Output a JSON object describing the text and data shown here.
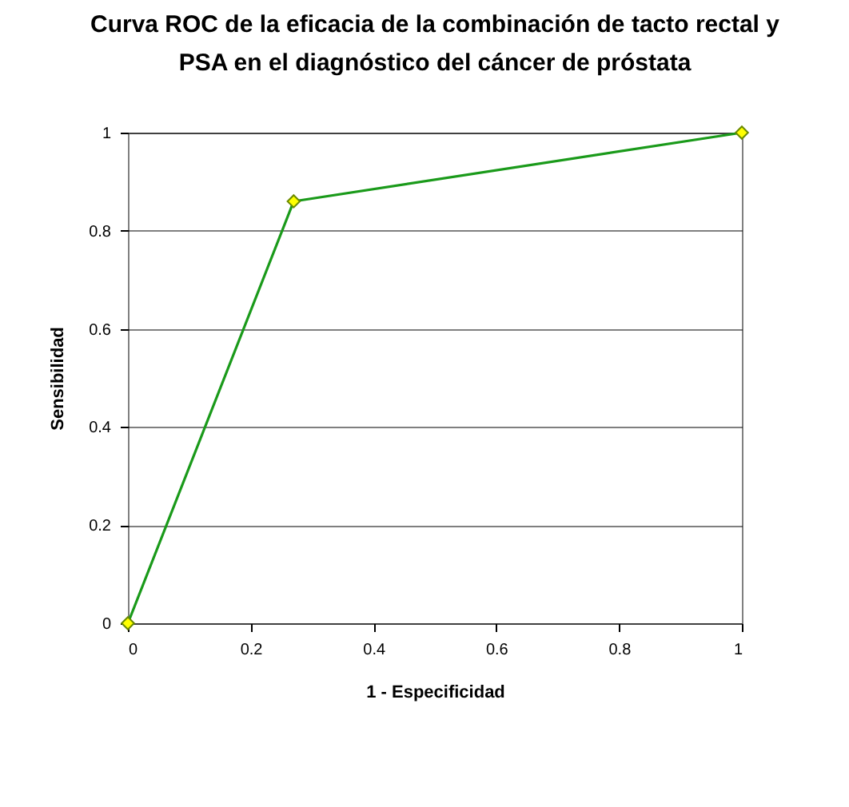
{
  "chart_data": {
    "type": "line",
    "title": "Curva ROC de la eficacia de la combinación de tacto rectal y PSA en el diagnóstico del cáncer de próstata",
    "xlabel": "1 - Especificidad",
    "ylabel": "Sensibilidad",
    "x": [
      0,
      0.27,
      1
    ],
    "series": [
      {
        "color": "#1a9a1a",
        "values": [
          0,
          0.86,
          1
        ]
      }
    ],
    "xlim": [
      0,
      1
    ],
    "xticks": [
      0,
      0.2,
      0.4,
      0.6,
      0.8,
      1
    ],
    "ylim": [
      0,
      1
    ],
    "yticks": [
      0,
      0.2,
      0.4,
      0.6,
      0.8,
      1
    ],
    "grid": "y",
    "marker": "diamond",
    "line_style": "solid"
  }
}
